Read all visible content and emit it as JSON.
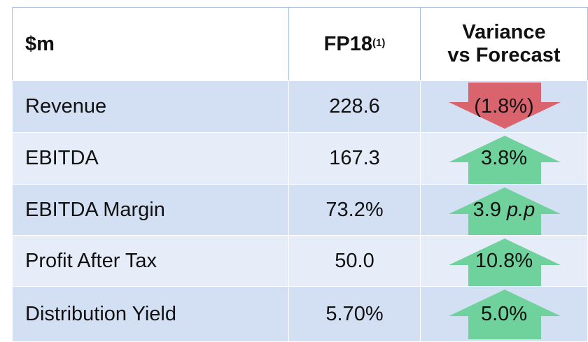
{
  "table": {
    "header": {
      "label": "$m",
      "period": "FP18",
      "period_note": "(1)",
      "variance_line1": "Variance",
      "variance_line2": "vs Forecast"
    },
    "rows": [
      {
        "label": "Revenue",
        "value": "228.6",
        "variance": "(1.8%)"
      },
      {
        "label": "EBITDA",
        "value": "167.3",
        "variance": "3.8%"
      },
      {
        "label": "EBITDA Margin",
        "value": "73.2%",
        "variance": "3.9",
        "variance_unit": "p.p"
      },
      {
        "label": "Profit After Tax",
        "value": "50.0",
        "variance": "10.8%"
      },
      {
        "label": "Distribution Yield",
        "value": "5.70%",
        "variance": "5.0%"
      }
    ]
  }
}
